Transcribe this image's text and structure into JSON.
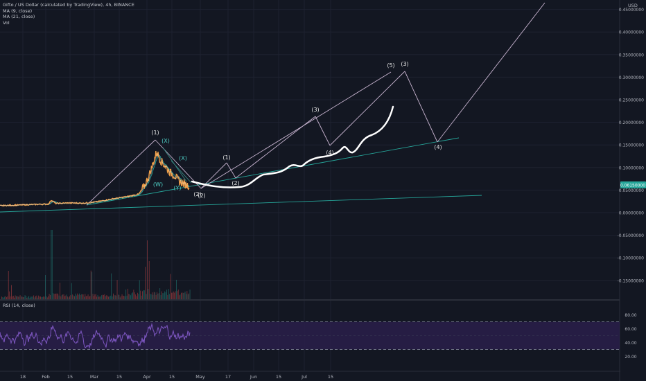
{
  "legend": {
    "title": "Gifto / US Dollar (calculated by TradingView), 4h, BINANCE",
    "ma9": "MA (9, close)",
    "ma21": "MA (21, close)",
    "vol": "Vol"
  },
  "rsi_label": "RSI (14, close)",
  "price_axis": {
    "currency": "USD",
    "ticks": [
      "0.45000000",
      "0.40000000",
      "0.35000000",
      "0.30000000",
      "0.25000000",
      "0.20000000",
      "0.15000000",
      "0.10000000",
      "0.05000000",
      "0.00000000",
      "-0.05000000",
      "-0.10000000",
      "-0.15000000"
    ],
    "tick_values": [
      0.45,
      0.4,
      0.35,
      0.3,
      0.25,
      0.2,
      0.15,
      0.1,
      0.05,
      0.0,
      -0.05,
      -0.1,
      -0.15
    ],
    "last_price": "0.06150000"
  },
  "rsi_axis": {
    "ticks": [
      "80.00",
      "60.00",
      "40.00",
      "20.00"
    ],
    "tick_values": [
      80,
      60,
      40,
      20
    ]
  },
  "time_axis": {
    "labels": [
      "18",
      "Feb",
      "15",
      "Mar",
      "15",
      "Apr",
      "15",
      "May",
      "17",
      "Jun",
      "15",
      "Jul",
      "15"
    ]
  },
  "wave_labels": [
    "(1)",
    "(X)",
    "(X)",
    "(W)",
    "(Y)",
    "(2)",
    "(2)",
    "(1)",
    "(2)",
    "(3)",
    "(4)",
    "(5)",
    "(3)",
    "(4)"
  ],
  "colors": {
    "background": "#131722",
    "grid": "#1e2230",
    "price": "#f0a04a",
    "ma9": "#e0e0e0",
    "ma21": "#26a69a",
    "drawing": "#c8b4d0",
    "projection": "#ffffff",
    "rsi": "#7e57c2",
    "rsi_band": "#2a1e4a",
    "last_price_tag": "#26a69a"
  }
}
